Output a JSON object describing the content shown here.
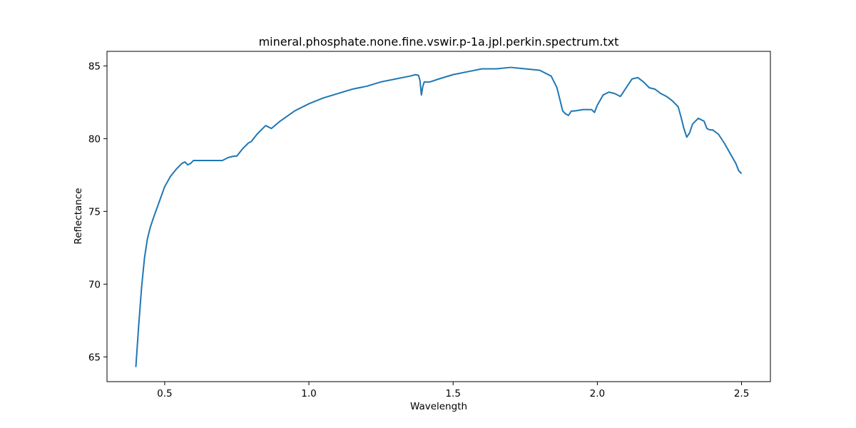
{
  "chart_data": {
    "type": "line",
    "title": "mineral.phosphate.none.fine.vswir.p-1a.jpl.perkin.spectrum.txt",
    "xlabel": "Wavelength",
    "ylabel": "Reflectance",
    "xlim": [
      0.3,
      2.6
    ],
    "ylim": [
      63.3,
      86.0
    ],
    "xticks": [
      0.5,
      1.0,
      1.5,
      2.0,
      2.5
    ],
    "xtick_labels": [
      "0.5",
      "1.0",
      "1.5",
      "2.0",
      "2.5"
    ],
    "yticks": [
      65,
      70,
      75,
      80,
      85
    ],
    "ytick_labels": [
      "65",
      "70",
      "75",
      "80",
      "85"
    ],
    "grid": false,
    "series": [
      {
        "color": "#1f77b4",
        "x": [
          0.4,
          0.41,
          0.42,
          0.43,
          0.44,
          0.45,
          0.46,
          0.48,
          0.5,
          0.52,
          0.54,
          0.56,
          0.57,
          0.58,
          0.59,
          0.6,
          0.62,
          0.65,
          0.7,
          0.72,
          0.74,
          0.75,
          0.77,
          0.79,
          0.8,
          0.82,
          0.84,
          0.85,
          0.86,
          0.87,
          0.9,
          0.95,
          1.0,
          1.05,
          1.1,
          1.15,
          1.2,
          1.25,
          1.3,
          1.35,
          1.37,
          1.38,
          1.385,
          1.39,
          1.395,
          1.4,
          1.42,
          1.45,
          1.5,
          1.55,
          1.6,
          1.65,
          1.7,
          1.75,
          1.8,
          1.84,
          1.86,
          1.87,
          1.88,
          1.89,
          1.9,
          1.91,
          1.92,
          1.95,
          1.98,
          1.99,
          2.0,
          2.02,
          2.04,
          2.06,
          2.08,
          2.1,
          2.12,
          2.14,
          2.16,
          2.18,
          2.2,
          2.22,
          2.24,
          2.26,
          2.28,
          2.29,
          2.3,
          2.31,
          2.32,
          2.33,
          2.35,
          2.37,
          2.38,
          2.39,
          2.4,
          2.42,
          2.44,
          2.46,
          2.48,
          2.49,
          2.5
        ],
        "values": [
          64.3,
          67.2,
          69.8,
          71.8,
          73.1,
          73.9,
          74.5,
          75.6,
          76.7,
          77.4,
          77.9,
          78.3,
          78.4,
          78.2,
          78.3,
          78.5,
          78.5,
          78.5,
          78.5,
          78.7,
          78.8,
          78.8,
          79.3,
          79.7,
          79.8,
          80.3,
          80.7,
          80.9,
          80.8,
          80.7,
          81.2,
          81.9,
          82.4,
          82.8,
          83.1,
          83.4,
          83.6,
          83.9,
          84.1,
          84.3,
          84.4,
          84.35,
          84.0,
          83.0,
          83.6,
          83.9,
          83.9,
          84.1,
          84.4,
          84.6,
          84.8,
          84.8,
          84.9,
          84.8,
          84.7,
          84.3,
          83.5,
          82.7,
          81.9,
          81.7,
          81.6,
          81.9,
          81.9,
          82.0,
          82.0,
          81.8,
          82.3,
          83.0,
          83.2,
          83.1,
          82.9,
          83.5,
          84.1,
          84.2,
          83.9,
          83.5,
          83.4,
          83.1,
          82.9,
          82.6,
          82.2,
          81.5,
          80.7,
          80.1,
          80.4,
          81.0,
          81.4,
          81.2,
          80.7,
          80.6,
          80.6,
          80.3,
          79.7,
          79.0,
          78.3,
          77.8,
          77.6
        ]
      }
    ]
  }
}
